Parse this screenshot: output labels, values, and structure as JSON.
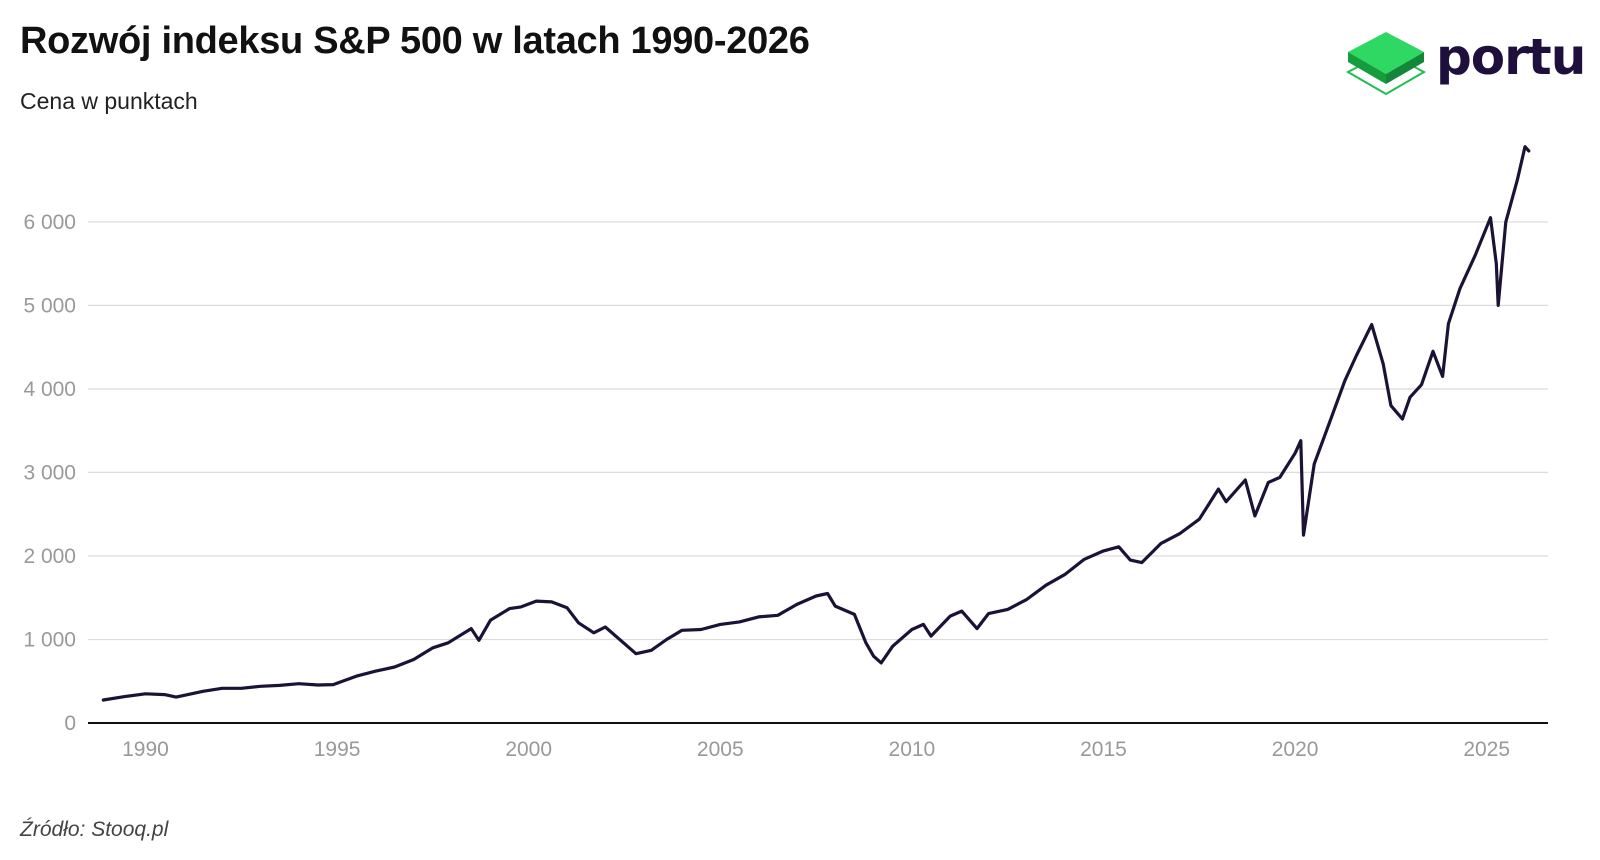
{
  "header": {
    "title": "Rozwój indeksu S&P 500 w latach 1990-2026",
    "subtitle": "Cena w punktach"
  },
  "logo": {
    "text": "portu",
    "icon": "stacked-layers-icon",
    "text_color": "#1e0f3c",
    "icon_color": "#1fbf4f"
  },
  "footer": {
    "source": "Źródło: Stooq.pl"
  },
  "colors": {
    "line": "#1c1236",
    "grid": "#dddddd",
    "axis": "#111111",
    "tick_text": "#999999"
  },
  "chart_data": {
    "type": "line",
    "title": "Rozwój indeksu S&P 500 w latach 1990-2026",
    "subtitle": "Cena w punktach",
    "xlabel": "",
    "ylabel": "",
    "xlim": [
      1988.5,
      2026.6
    ],
    "ylim": [
      0,
      7100
    ],
    "x_ticks": [
      1990,
      1995,
      2000,
      2005,
      2010,
      2015,
      2020,
      2025
    ],
    "x_tick_labels": [
      "1990",
      "1995",
      "2000",
      "2005",
      "2010",
      "2015",
      "2020",
      "2025"
    ],
    "y_ticks": [
      0,
      1000,
      2000,
      3000,
      4000,
      5000,
      6000
    ],
    "y_tick_labels": [
      "0",
      "1 000",
      "2 000",
      "3 000",
      "4 000",
      "5 000",
      "6 000"
    ],
    "grid": true,
    "series": [
      {
        "name": "S&P 500",
        "x": [
          1988.9,
          1989.5,
          1990.0,
          1990.5,
          1990.8,
          1991.0,
          1991.5,
          1992.0,
          1992.5,
          1993.0,
          1993.5,
          1994.0,
          1994.5,
          1994.9,
          1995.5,
          1996.0,
          1996.5,
          1997.0,
          1997.5,
          1997.9,
          1998.5,
          1998.7,
          1999.0,
          1999.5,
          1999.8,
          2000.2,
          2000.6,
          2001.0,
          2001.3,
          2001.7,
          2002.0,
          2002.5,
          2002.8,
          2003.2,
          2003.6,
          2004.0,
          2004.5,
          2005.0,
          2005.5,
          2006.0,
          2006.5,
          2007.0,
          2007.5,
          2007.8,
          2008.0,
          2008.5,
          2008.8,
          2009.0,
          2009.2,
          2009.5,
          2010.0,
          2010.3,
          2010.5,
          2011.0,
          2011.3,
          2011.7,
          2012.0,
          2012.5,
          2013.0,
          2013.5,
          2014.0,
          2014.5,
          2015.0,
          2015.4,
          2015.7,
          2016.0,
          2016.5,
          2017.0,
          2017.5,
          2018.0,
          2018.2,
          2018.7,
          2018.95,
          2019.3,
          2019.6,
          2020.0,
          2020.15,
          2020.22,
          2020.5,
          2020.9,
          2021.3,
          2021.6,
          2022.0,
          2022.3,
          2022.5,
          2022.8,
          2023.0,
          2023.3,
          2023.6,
          2023.85,
          2024.0,
          2024.3,
          2024.7,
          2025.1,
          2025.25,
          2025.3,
          2025.5,
          2025.8,
          2026.0,
          2026.1
        ],
        "values": [
          275,
          320,
          350,
          340,
          310,
          330,
          380,
          415,
          415,
          440,
          450,
          470,
          455,
          460,
          560,
          620,
          670,
          760,
          900,
          960,
          1130,
          990,
          1230,
          1370,
          1390,
          1460,
          1450,
          1380,
          1200,
          1080,
          1150,
          950,
          830,
          870,
          1000,
          1110,
          1120,
          1180,
          1210,
          1270,
          1290,
          1420,
          1520,
          1550,
          1400,
          1300,
          960,
          800,
          720,
          920,
          1120,
          1180,
          1040,
          1280,
          1340,
          1130,
          1310,
          1360,
          1480,
          1650,
          1780,
          1960,
          2060,
          2110,
          1950,
          1920,
          2150,
          2270,
          2440,
          2800,
          2650,
          2910,
          2480,
          2880,
          2940,
          3230,
          3380,
          2250,
          3100,
          3600,
          4100,
          4400,
          4770,
          4300,
          3800,
          3640,
          3900,
          4050,
          4450,
          4150,
          4780,
          5200,
          5600,
          6050,
          5500,
          5000,
          6000,
          6500,
          6900,
          6850
        ]
      }
    ]
  }
}
